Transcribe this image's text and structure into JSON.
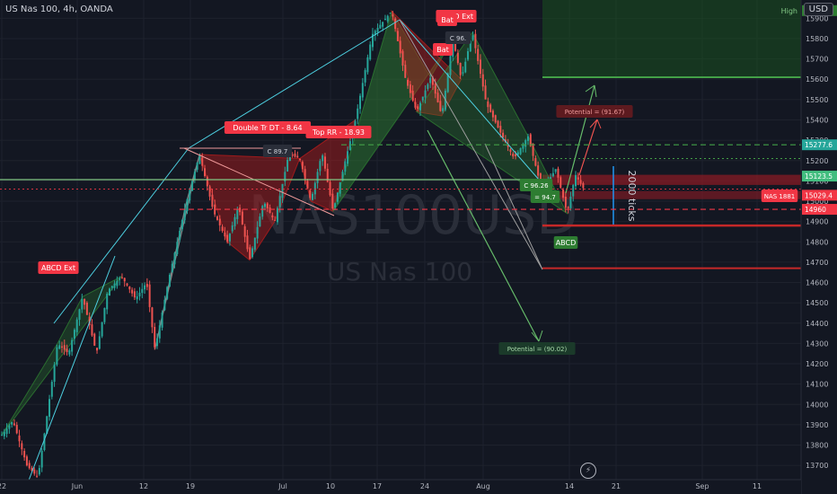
{
  "header": {
    "symbol": "US Nas 100, 4h, OANDA",
    "currency": "USD"
  },
  "watermark": {
    "ticker": "NAS100USD",
    "name": "US Nas 100"
  },
  "chart_data": {
    "type": "line",
    "title": "US Nas 100, 4h, OANDA",
    "ylim": [
      13630,
      15990
    ],
    "y_ticks": [
      13700,
      13800,
      13900,
      14000,
      14100,
      14200,
      14300,
      14400,
      14500,
      14600,
      14700,
      14800,
      14900,
      15000,
      15100,
      15200,
      15300,
      15400,
      15500,
      15600,
      15700,
      15800,
      15900
    ],
    "x_ticks": [
      "22",
      "Jun",
      "12",
      "19",
      "Jul",
      "10",
      "17",
      "24",
      "Aug",
      "14",
      "21",
      "Sep",
      "11"
    ],
    "price_path": [
      {
        "t": 0,
        "v": 13850
      },
      {
        "t": 4,
        "v": 13920
      },
      {
        "t": 9,
        "v": 13700
      },
      {
        "t": 13,
        "v": 13640
      },
      {
        "t": 20,
        "v": 14300
      },
      {
        "t": 24,
        "v": 14250
      },
      {
        "t": 29,
        "v": 14530
      },
      {
        "t": 34,
        "v": 14250
      },
      {
        "t": 38,
        "v": 14560
      },
      {
        "t": 43,
        "v": 14630
      },
      {
        "t": 48,
        "v": 14520
      },
      {
        "t": 52,
        "v": 14600
      },
      {
        "t": 55,
        "v": 14270
      },
      {
        "t": 60,
        "v": 14620
      },
      {
        "t": 66,
        "v": 14980
      },
      {
        "t": 71,
        "v": 15230
      },
      {
        "t": 76,
        "v": 14950
      },
      {
        "t": 81,
        "v": 14800
      },
      {
        "t": 85,
        "v": 14980
      },
      {
        "t": 89,
        "v": 14710
      },
      {
        "t": 94,
        "v": 15000
      },
      {
        "t": 98,
        "v": 14900
      },
      {
        "t": 103,
        "v": 15230
      },
      {
        "t": 107,
        "v": 15210
      },
      {
        "t": 111,
        "v": 15000
      },
      {
        "t": 115,
        "v": 15240
      },
      {
        "t": 119,
        "v": 14950
      },
      {
        "t": 123,
        "v": 15180
      },
      {
        "t": 127,
        "v": 15400
      },
      {
        "t": 133,
        "v": 15820
      },
      {
        "t": 140,
        "v": 15935
      },
      {
        "t": 145,
        "v": 15600
      },
      {
        "t": 149,
        "v": 15440
      },
      {
        "t": 154,
        "v": 15610
      },
      {
        "t": 158,
        "v": 15420
      },
      {
        "t": 162,
        "v": 15800
      },
      {
        "t": 165,
        "v": 15600
      },
      {
        "t": 169,
        "v": 15830
      },
      {
        "t": 174,
        "v": 15480
      },
      {
        "t": 179,
        "v": 15340
      },
      {
        "t": 184,
        "v": 15210
      },
      {
        "t": 189,
        "v": 15320
      },
      {
        "t": 194,
        "v": 15050
      },
      {
        "t": 199,
        "v": 15160
      },
      {
        "t": 203,
        "v": 14940
      },
      {
        "t": 206,
        "v": 15130
      },
      {
        "t": 209,
        "v": 15060
      }
    ],
    "levels": [
      {
        "name": "High",
        "value": 15937.8,
        "color": "#81c784"
      },
      {
        "value": 15277.6,
        "color": "#26a69a"
      },
      {
        "value": 15123.5,
        "color": "#42bd7f"
      },
      {
        "value": 15029.4,
        "color": "#f23645"
      },
      {
        "value": 14960.0,
        "color": "#f23645"
      }
    ],
    "annotations": [
      "ABCD Ext",
      "ABCD Ext",
      "ABCD",
      "Bat",
      "Bat",
      "Double Tr DT - 8.64",
      "Top RR - 18.93",
      "Potential = (91.67)",
      "Potential = (90.02)",
      "C 96.26",
      "= 94.7",
      "C 89.7",
      "C 96.",
      "2000 ticks",
      "NAS 1881"
    ],
    "colors": {
      "up": "#26a69a",
      "down": "#ef5350",
      "pattern_fill": "#2e7d32",
      "bear_fill": "#b71c1c",
      "projection": "#4dd0e1"
    }
  }
}
